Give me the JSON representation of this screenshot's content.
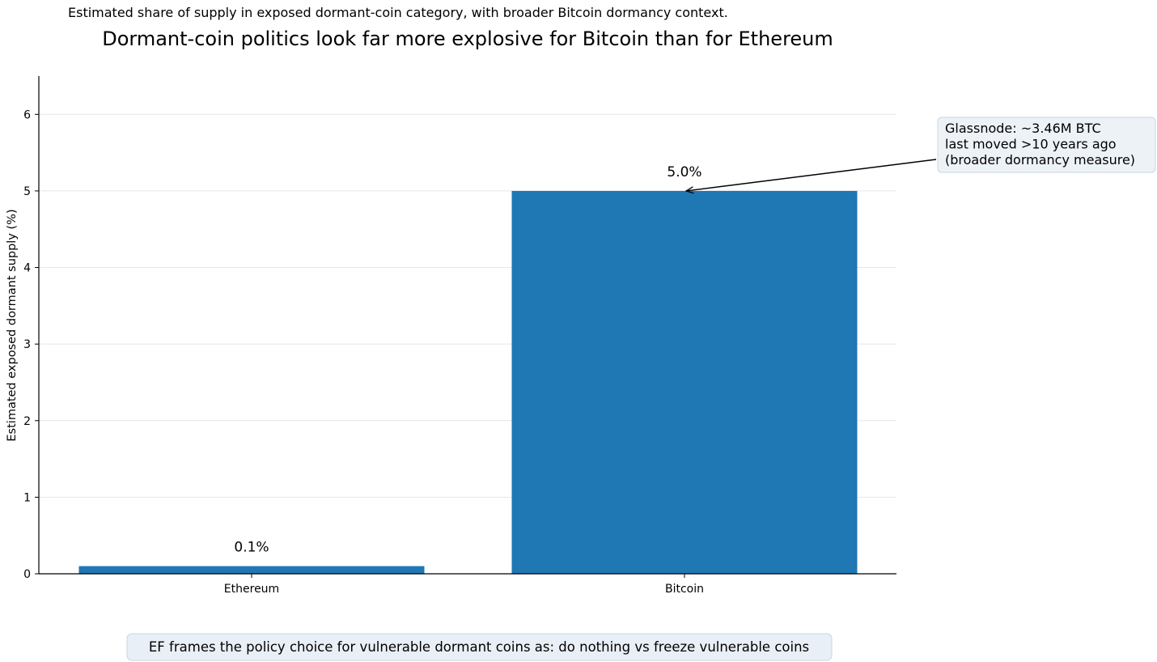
{
  "chart_data": {
    "type": "bar",
    "subtitle": "Estimated share of supply in exposed dormant-coin category, with broader Bitcoin dormancy context.",
    "title": "Dormant-coin politics look far more explosive for Bitcoin than for Ethereum",
    "xlabel": "",
    "ylabel": "Estimated exposed dormant supply (%)",
    "categories": [
      "Ethereum",
      "Bitcoin"
    ],
    "values": [
      0.1,
      5.0
    ],
    "data_labels": [
      "0.1%",
      "5.0%"
    ],
    "ylim": [
      0,
      6.5
    ],
    "yticks": [
      0,
      1,
      2,
      3,
      4,
      5,
      6
    ],
    "grid": "horizontal",
    "bar_color": "#1f77b4",
    "annotation": {
      "lines": [
        "Glassnode: ~3.46M BTC",
        "last moved >10 years ago",
        "(broader dormancy measure)"
      ],
      "points_to": {
        "category": "Bitcoin",
        "value": 5.0
      }
    },
    "footnote": "EF frames the policy choice for vulnerable dormant coins as: do nothing vs freeze vulnerable coins"
  }
}
